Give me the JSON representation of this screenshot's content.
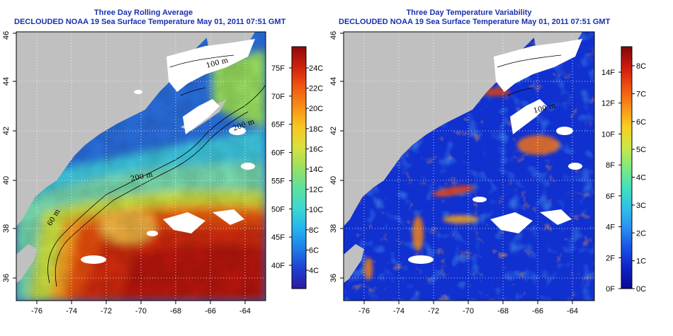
{
  "panels": [
    {
      "title": "Three Day Rolling Average",
      "subtitle": "DECLOUDED NOAA 19 Sea Surface Temperature May 01, 2011 07:51 GMT",
      "colorbar": {
        "colors": [
          "#2a1aa0",
          "#1f3fd0",
          "#1f7fe8",
          "#22b6ee",
          "#3fd8d0",
          "#5fe0a0",
          "#9ae060",
          "#d8e040",
          "#f8c820",
          "#f89018",
          "#f05810",
          "#d02010",
          "#8c0a0a"
        ],
        "celsius_labels": [
          "24C",
          "22C",
          "20C",
          "18C",
          "16C",
          "14C",
          "12C",
          "10C",
          "8C",
          "6C",
          "4C"
        ],
        "fahrenheit_labels": [
          "75F",
          "70F",
          "65F",
          "60F",
          "55F",
          "50F",
          "45F",
          "40F"
        ]
      },
      "contour_labels": [
        "100 m",
        "200 m",
        "200 m",
        "60 m"
      ]
    },
    {
      "title": "Three Day Temperature Variability",
      "subtitle": "DECLOUDED NOAA 19 Sea Surface Temperature May 01, 2011 07:51 GMT",
      "colorbar": {
        "colors": [
          "#0a0a90",
          "#1020c8",
          "#1a50e8",
          "#2890f0",
          "#30c0e8",
          "#40e0c0",
          "#80e880",
          "#c8e848",
          "#f8d020",
          "#f89018",
          "#f05010",
          "#d01810",
          "#800808"
        ],
        "celsius_labels": [
          "8C",
          "7C",
          "6C",
          "5C",
          "4C",
          "3C",
          "2C",
          "1C",
          "0C"
        ],
        "fahrenheit_labels": [
          "14F",
          "12F",
          "10F",
          "8F",
          "6F",
          "4F",
          "2F",
          "0F"
        ]
      },
      "contour_labels": [
        "100 m"
      ]
    }
  ],
  "axes": {
    "x_ticks": [
      "-76",
      "-74",
      "-72",
      "-70",
      "-68",
      "-66",
      "-64"
    ],
    "y_ticks": [
      "36",
      "38",
      "40",
      "42",
      "44",
      "46"
    ]
  },
  "colors": {
    "land": "#c0c0c0",
    "cloud": "#ffffff",
    "title": "#1a2fb0"
  }
}
